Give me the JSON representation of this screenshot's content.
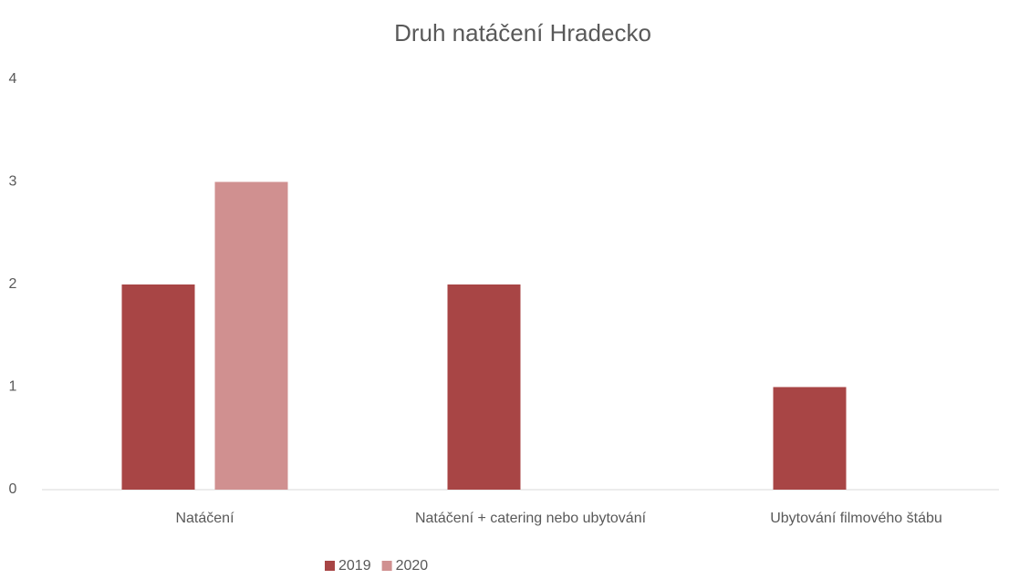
{
  "chart_data": {
    "type": "bar",
    "title": "Druh natáčení Hradecko",
    "categories": [
      "Natáčení",
      "Natáčení + catering nebo ubytování",
      "Ubytování filmového štábu"
    ],
    "series": [
      {
        "name": "2019",
        "color": "#a84545",
        "values": [
          2,
          2,
          1
        ]
      },
      {
        "name": "2020",
        "color": "#d09090",
        "values": [
          3,
          0,
          0
        ]
      }
    ],
    "ylim": [
      0,
      4
    ],
    "yticks": [
      0,
      1,
      2,
      3,
      4
    ],
    "grid": false,
    "legend": "bottom"
  }
}
